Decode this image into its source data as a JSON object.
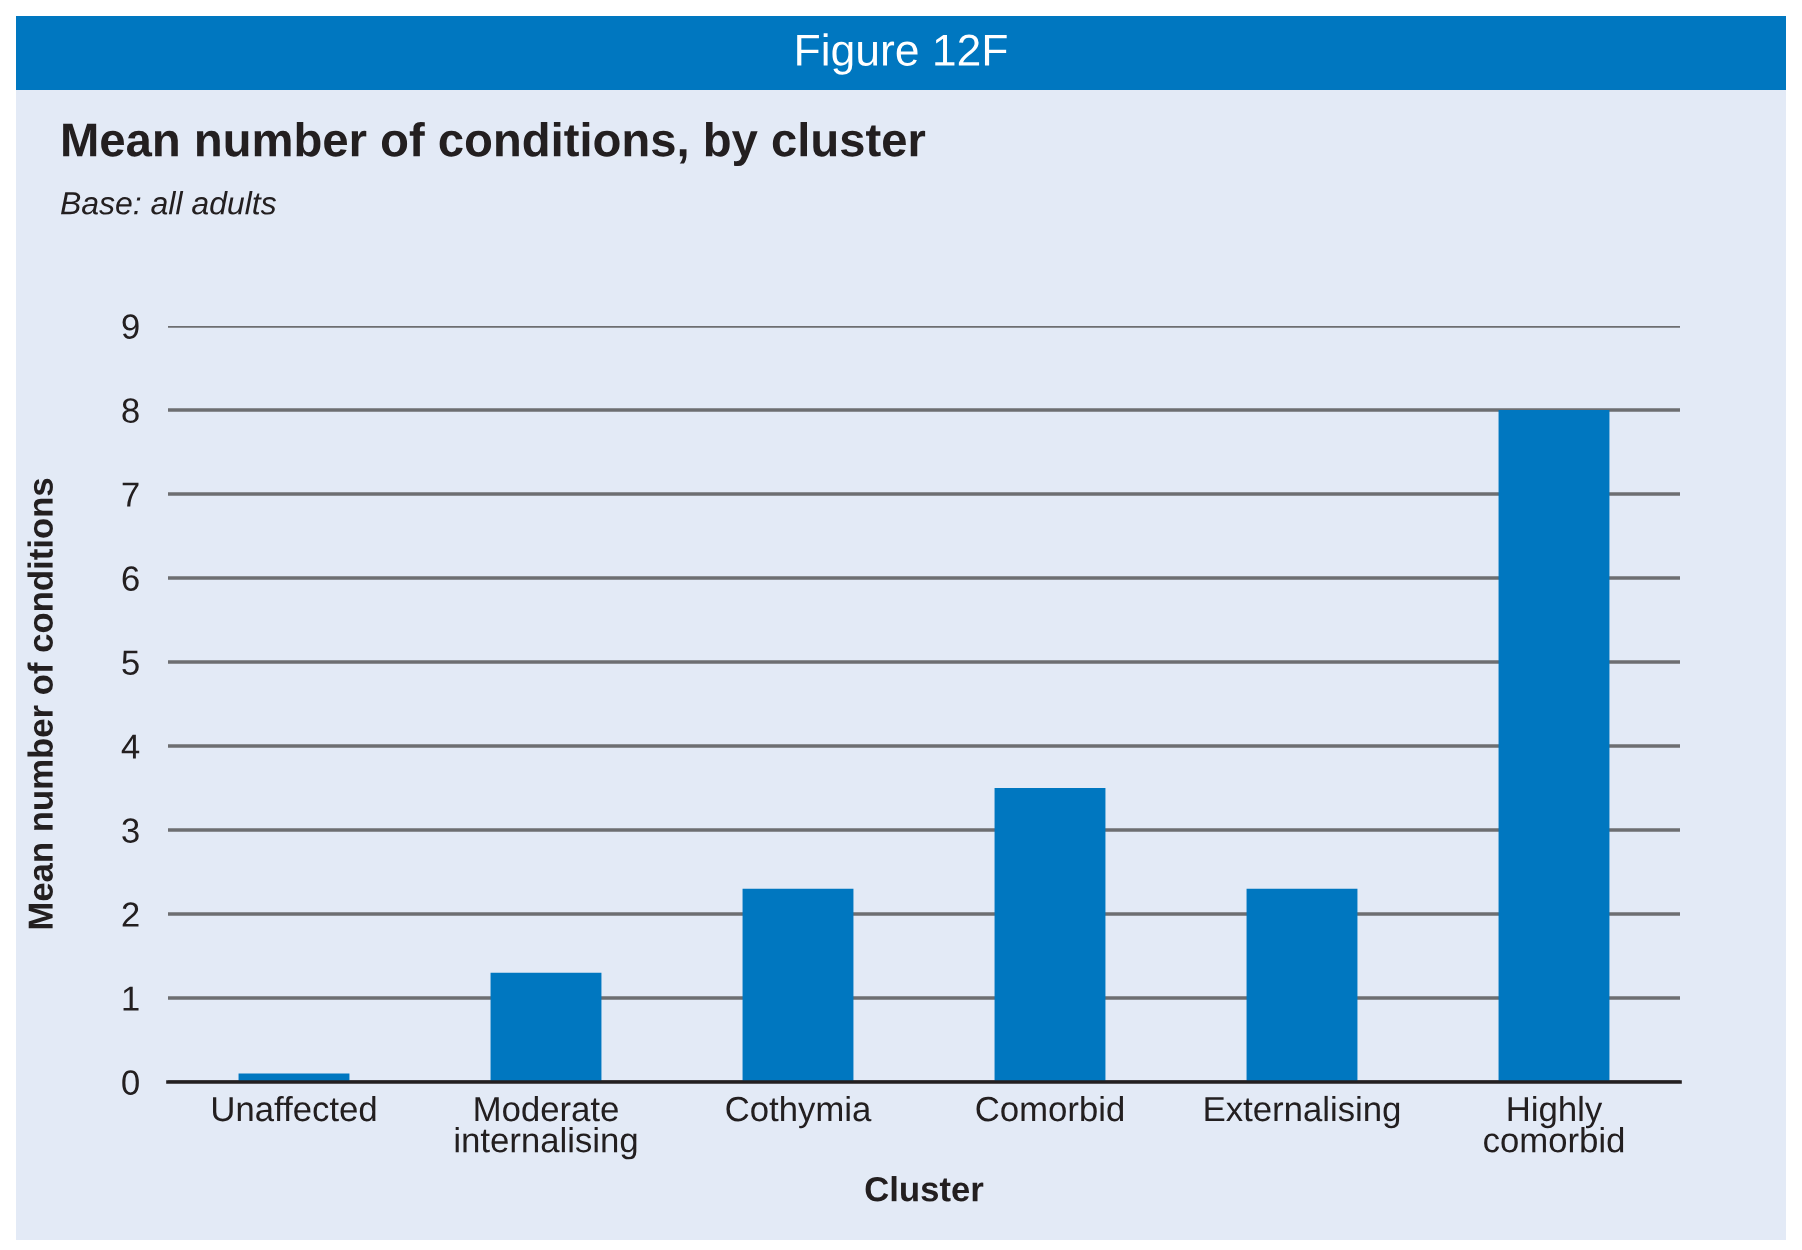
{
  "chart_data": {
    "type": "bar",
    "title": "Mean number of conditions, by cluster",
    "subtitle": "Base: all adults",
    "annotations": [
      "Figure 12F"
    ],
    "xlabel": "Cluster",
    "ylabel": "Mean number of conditions",
    "categories": [
      "Unaffected",
      "Moderate\ninternalising",
      "Cothymia",
      "Comorbid",
      "Externalising",
      "Highly\ncomorbid"
    ],
    "values": [
      0.1,
      1.3,
      2.3,
      3.5,
      2.3,
      8.0
    ],
    "color": "#0077c0",
    "ylim": [
      0,
      9
    ],
    "yticks": [
      0,
      1,
      2,
      3,
      4,
      5,
      6,
      7,
      8,
      9
    ],
    "grid": "y",
    "legend": false
  }
}
